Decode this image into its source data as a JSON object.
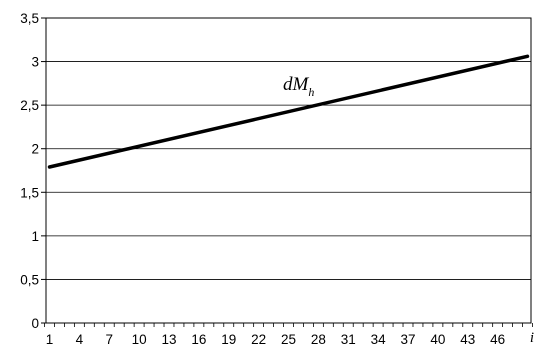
{
  "chart_data": {
    "type": "line",
    "title": "",
    "xlabel": "i",
    "ylabel": "",
    "x_tick_labels": [
      "1",
      "4",
      "7",
      "10",
      "13",
      "16",
      "19",
      "22",
      "25",
      "28",
      "31",
      "34",
      "37",
      "40",
      "43",
      "46"
    ],
    "y_tick_labels": [
      "0",
      "0,5",
      "1",
      "1,5",
      "2",
      "2,5",
      "3",
      "3,5"
    ],
    "xlim": [
      1,
      49
    ],
    "ylim": [
      0,
      3.5
    ],
    "grid": {
      "horizontal": true,
      "vertical": false
    },
    "legend": "none",
    "series": [
      {
        "label_base": "dM",
        "label_subscript": "h",
        "color": "#000000",
        "x": [
          1,
          49
        ],
        "y": [
          1.79,
          3.06
        ]
      }
    ]
  }
}
